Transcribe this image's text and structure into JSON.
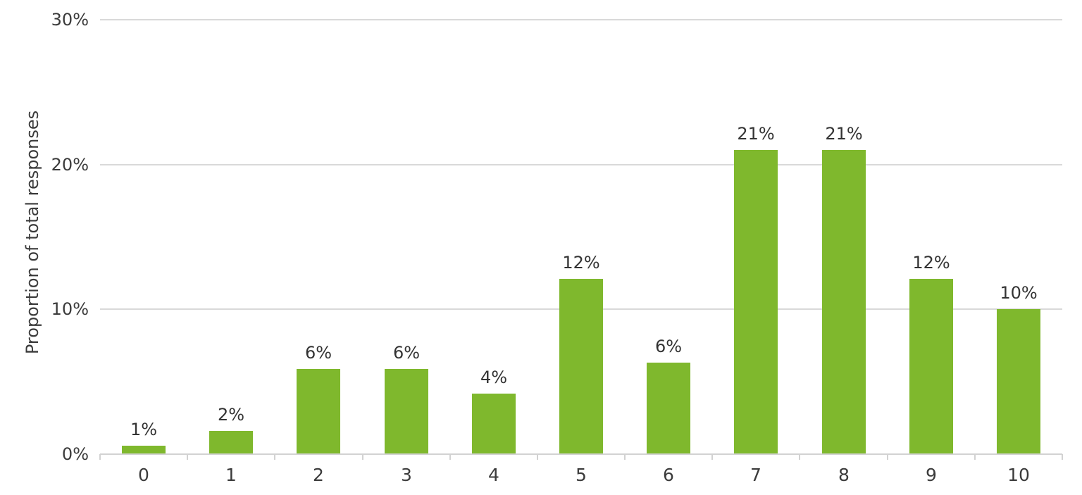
{
  "chart_data": {
    "type": "bar",
    "title": "",
    "xlabel": "",
    "ylabel": "Proportion of total responses",
    "categories": [
      "0",
      "1",
      "2",
      "3",
      "4",
      "5",
      "6",
      "7",
      "8",
      "9",
      "10"
    ],
    "values": [
      1,
      2,
      6,
      6,
      4,
      12,
      6,
      21,
      21,
      12,
      10
    ],
    "bar_labels": [
      "1%",
      "2%",
      "6%",
      "6%",
      "4%",
      "12%",
      "6%",
      "21%",
      "21%",
      "12%",
      "10%"
    ],
    "plotted_values": [
      0.6,
      1.6,
      5.9,
      5.9,
      4.2,
      12.1,
      6.3,
      21.0,
      21.0,
      12.1,
      10.0
    ],
    "ylim": [
      0,
      30
    ],
    "ytick_values": [
      0,
      10,
      20,
      30
    ],
    "ytick_labels": [
      "0%",
      "10%",
      "20%",
      "30%"
    ],
    "grid": true,
    "legend": false,
    "colors": {
      "bar": "#7fb82d",
      "gridline": "#d9d9d9",
      "axis_line": "#d2d2d2",
      "text": "#3b3b3b"
    }
  }
}
